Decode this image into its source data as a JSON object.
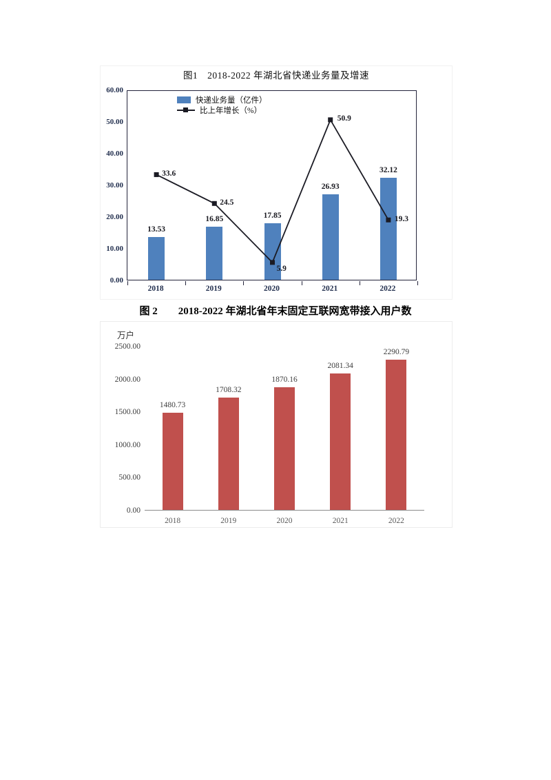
{
  "chart_data": [
    {
      "type": "bar+line",
      "title": "图1　2018-2022 年湖北省快递业务量及增速",
      "categories": [
        "2018",
        "2019",
        "2020",
        "2021",
        "2022"
      ],
      "series": [
        {
          "name": "快递业务量（亿件）",
          "kind": "bar",
          "values": [
            13.53,
            16.85,
            17.85,
            26.93,
            32.12
          ],
          "labels": [
            "13.53",
            "16.85",
            "17.85",
            "26.93",
            "32.12"
          ],
          "color": "#4F81BD"
        },
        {
          "name": "比上年增长（%）",
          "kind": "line",
          "values": [
            33.6,
            24.5,
            5.9,
            50.9,
            19.3
          ],
          "labels": [
            "33.6",
            "24.5",
            "5.9",
            "50.9",
            "19.3"
          ],
          "color": "#1b1b24"
        }
      ],
      "ylim": [
        0,
        60
      ],
      "yticks": [
        "0.00",
        "10.00",
        "20.00",
        "30.00",
        "40.00",
        "50.00",
        "60.00"
      ],
      "legend_position": "top-inside",
      "grid": false
    },
    {
      "type": "bar",
      "title": "图 2　　2018-2022 年湖北省年末固定互联网宽带接入用户数",
      "unit": "万户",
      "categories": [
        "2018",
        "2019",
        "2020",
        "2021",
        "2022"
      ],
      "values": [
        1480.73,
        1708.32,
        1870.16,
        2081.34,
        2290.79
      ],
      "value_labels": [
        "1480.73",
        "1708.32",
        "1870.16",
        "2081.34",
        "2290.79"
      ],
      "bar_color": "#C0504D",
      "ylim": [
        0,
        2500
      ],
      "yticks": [
        "0.00",
        "500.00",
        "1000.00",
        "1500.00",
        "2000.00",
        "2500.00"
      ],
      "legend_position": "none",
      "grid": false
    }
  ]
}
